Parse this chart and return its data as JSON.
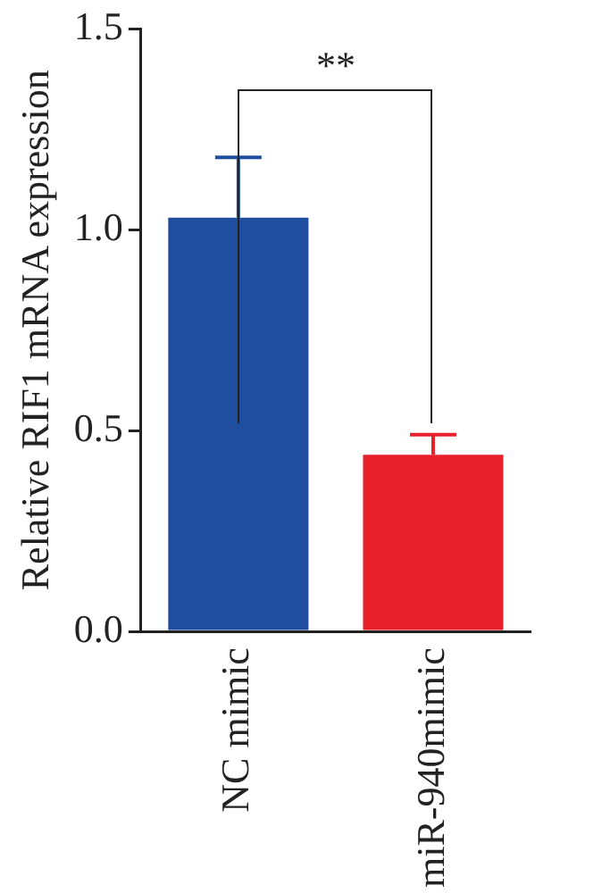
{
  "chart_data": {
    "type": "bar",
    "ylabel": "Relative RIF1 mRNA expression",
    "categories": [
      "NC mimic",
      "miR-940mimic"
    ],
    "values": [
      1.03,
      0.44
    ],
    "colors": [
      "#1f4e9e",
      "#e8202a"
    ],
    "errors": [
      [
        1.03,
        1.18
      ],
      [
        0.44,
        0.49
      ]
    ],
    "ylim": [
      0,
      1.5
    ],
    "yticks": [
      {
        "value": 0,
        "label": "0.0"
      },
      {
        "value": 0.5,
        "label": "0.5"
      },
      {
        "value": 1,
        "label": "1.0"
      },
      {
        "value": 1.5,
        "label": "1.5"
      }
    ],
    "grid": false,
    "legend": false,
    "annotations": [
      "**"
    ]
  }
}
